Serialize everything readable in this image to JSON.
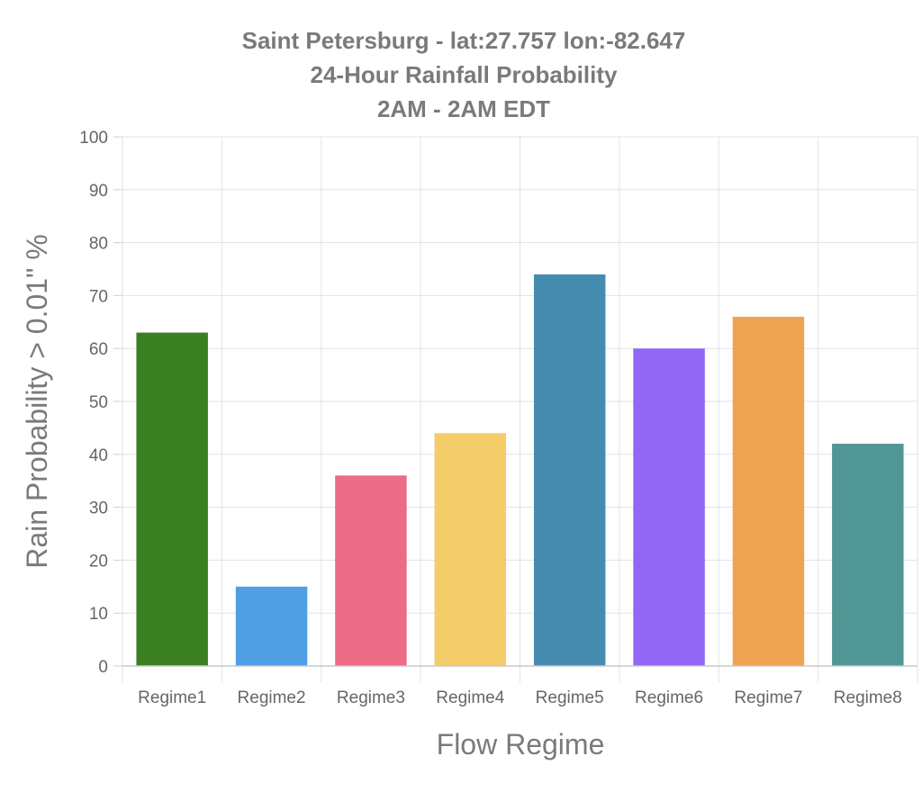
{
  "chart_data": {
    "type": "bar",
    "title": [
      "Saint Petersburg - lat:27.757  lon:-82.647",
      "24-Hour Rainfall Probability",
      "2AM - 2AM EDT"
    ],
    "xlabel": "Flow Regime",
    "ylabel": "Rain Probability > 0.01\" %",
    "categories": [
      "Regime1",
      "Regime2",
      "Regime3",
      "Regime4",
      "Regime5",
      "Regime6",
      "Regime7",
      "Regime8"
    ],
    "values": [
      63,
      15,
      36,
      44,
      74,
      60,
      66,
      42
    ],
    "colors": [
      "#3a7f22",
      "#509ee3",
      "#ec6b86",
      "#f5cc6a",
      "#468bb0",
      "#9167f5",
      "#eea352",
      "#4f9695"
    ],
    "ylim": [
      0,
      100
    ],
    "yticks": [
      0,
      10,
      20,
      30,
      40,
      50,
      60,
      70,
      80,
      90,
      100
    ],
    "grid": true,
    "legend": "none"
  }
}
